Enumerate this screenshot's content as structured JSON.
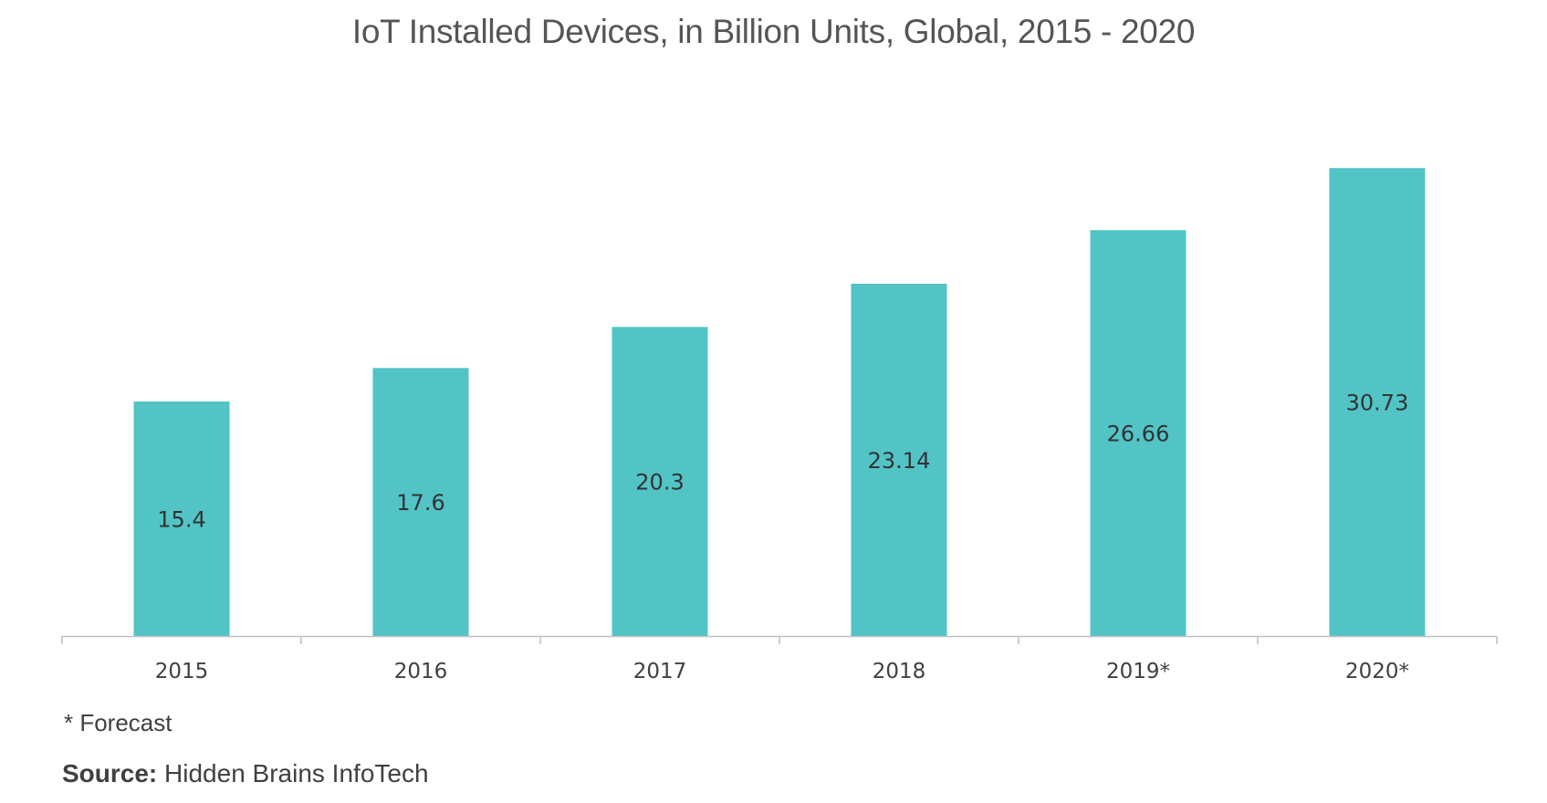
{
  "chart_data": {
    "type": "bar",
    "title": "IoT Installed Devices, in Billion Units, Global, 2015 - 2020",
    "categories": [
      "2015",
      "2016",
      "2017",
      "2018",
      "2019*",
      "2020*"
    ],
    "values": [
      15.4,
      17.6,
      20.3,
      23.14,
      26.66,
      30.73
    ],
    "value_labels": [
      "15.4",
      "17.6",
      "20.3",
      "23.14",
      "26.66",
      "30.73"
    ],
    "xlabel": "",
    "ylabel": "",
    "ylim": [
      0,
      35
    ],
    "grid": false,
    "y_axis_visible": false,
    "bar_color": "#52C4C6",
    "axis_color": "#BFBFBF"
  },
  "footnote": "* Forecast",
  "source": {
    "label": "Source:",
    "text": "Hidden Brains InfoTech"
  }
}
